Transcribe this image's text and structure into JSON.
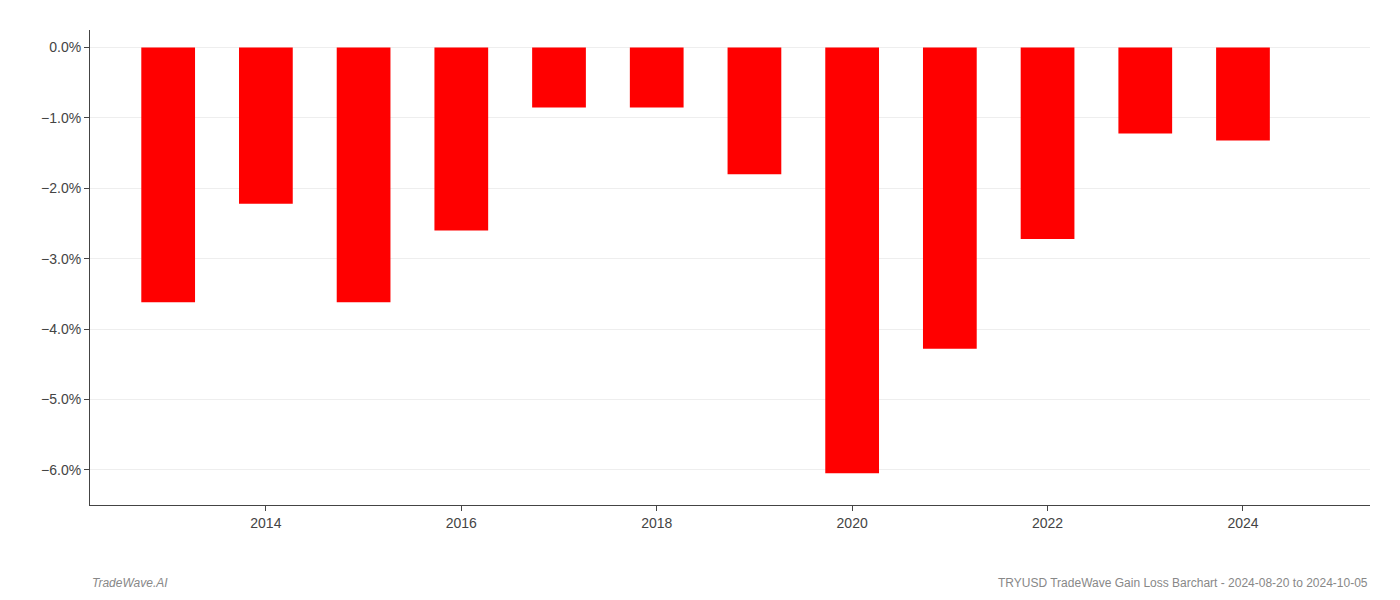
{
  "chart_data": {
    "type": "bar",
    "x": [
      2013,
      2014,
      2015,
      2016,
      2017,
      2018,
      2019,
      2020,
      2021,
      2022,
      2023,
      2024
    ],
    "values": [
      -3.62,
      -2.22,
      -3.62,
      -2.6,
      -0.85,
      -0.85,
      -1.8,
      -6.05,
      -4.28,
      -2.72,
      -1.22,
      -1.32
    ],
    "color": "#ff0000",
    "xlim": [
      2012.2,
      2025.3
    ],
    "xticks": [
      2014,
      2016,
      2018,
      2020,
      2022,
      2024
    ],
    "ylim": [
      -6.5,
      0.25
    ],
    "yticks": [
      {
        "value": 0.0,
        "label": "0.0%"
      },
      {
        "value": -1.0,
        "label": "−1.0%"
      },
      {
        "value": -2.0,
        "label": "−2.0%"
      },
      {
        "value": -3.0,
        "label": "−3.0%"
      },
      {
        "value": -4.0,
        "label": "−4.0%"
      },
      {
        "value": -5.0,
        "label": "−5.0%"
      },
      {
        "value": -6.0,
        "label": "−6.0%"
      }
    ],
    "grid": true,
    "annotations": [
      "TradeWave.AI",
      "TRYUSD TradeWave Gain Loss Barchart - 2024-08-20 to 2024-10-05"
    ]
  }
}
